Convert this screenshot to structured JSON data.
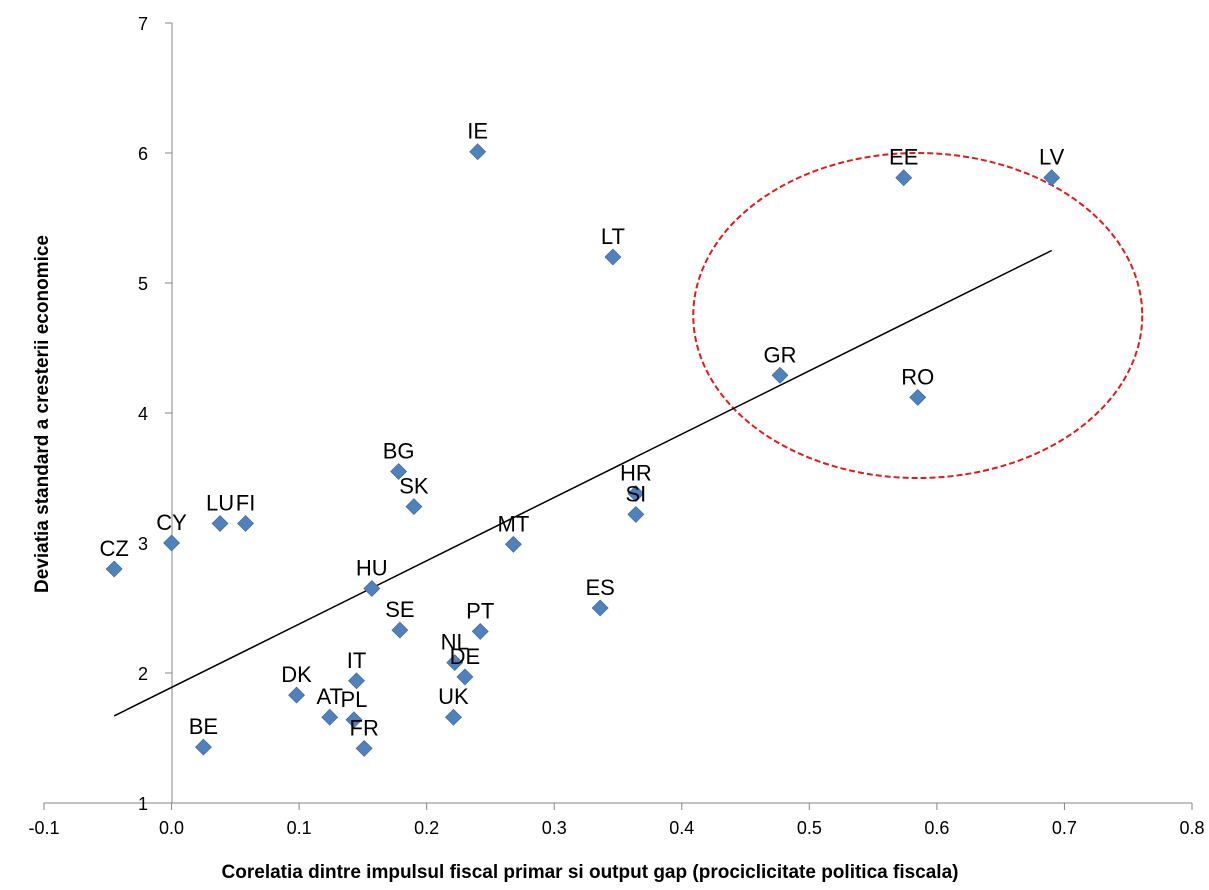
{
  "chart_data": {
    "type": "scatter",
    "title": "",
    "xlabel": "Corelatia dintre impulsul fiscal primar si output gap (prociclicitate politica fiscala)",
    "ylabel": "Deviatia standard a cresterii economice",
    "xlim": [
      -0.1,
      0.8
    ],
    "ylim": [
      1,
      7
    ],
    "x_ticks": [
      "-0.1",
      "0.0",
      "0.1",
      "0.2",
      "0.3",
      "0.4",
      "0.5",
      "0.6",
      "0.7",
      "0.8"
    ],
    "y_ticks": [
      "1",
      "2",
      "3",
      "4",
      "5",
      "6",
      "7"
    ],
    "grid": false,
    "legend": "none",
    "marker_color": "#4F81BD",
    "trendline": {
      "x": [
        -0.045,
        0.69
      ],
      "y": [
        1.67,
        5.25
      ],
      "color": "#000000"
    },
    "highlight_ellipse": {
      "cx": 0.585,
      "cy": 4.75,
      "rx": 0.176,
      "ry": 1.25,
      "color": "#E31A1C"
    },
    "points": [
      {
        "label": "CZ",
        "x": -0.045,
        "y": 2.8
      },
      {
        "label": "CY",
        "x": 0.0,
        "y": 3.0
      },
      {
        "label": "LU",
        "x": 0.038,
        "y": 3.15
      },
      {
        "label": "FI",
        "x": 0.058,
        "y": 3.15
      },
      {
        "label": "BE",
        "x": 0.025,
        "y": 1.43
      },
      {
        "label": "DK",
        "x": 0.098,
        "y": 1.83
      },
      {
        "label": "AT",
        "x": 0.124,
        "y": 1.66
      },
      {
        "label": "IT",
        "x": 0.145,
        "y": 1.94
      },
      {
        "label": "PL",
        "x": 0.143,
        "y": 1.64
      },
      {
        "label": "FR",
        "x": 0.151,
        "y": 1.42
      },
      {
        "label": "HU",
        "x": 0.157,
        "y": 2.65
      },
      {
        "label": "BG",
        "x": 0.178,
        "y": 3.55
      },
      {
        "label": "SE",
        "x": 0.179,
        "y": 2.33
      },
      {
        "label": "SK",
        "x": 0.19,
        "y": 3.28
      },
      {
        "label": "NL",
        "x": 0.222,
        "y": 2.08
      },
      {
        "label": "DE",
        "x": 0.23,
        "y": 1.97
      },
      {
        "label": "UK",
        "x": 0.221,
        "y": 1.66
      },
      {
        "label": "IE",
        "x": 0.24,
        "y": 6.01
      },
      {
        "label": "PT",
        "x": 0.242,
        "y": 2.32
      },
      {
        "label": "MT",
        "x": 0.268,
        "y": 2.99
      },
      {
        "label": "ES",
        "x": 0.336,
        "y": 2.5
      },
      {
        "label": "LT",
        "x": 0.346,
        "y": 5.2
      },
      {
        "label": "HR",
        "x": 0.364,
        "y": 3.38
      },
      {
        "label": "SI",
        "x": 0.364,
        "y": 3.22
      },
      {
        "label": "GR",
        "x": 0.477,
        "y": 4.29
      },
      {
        "label": "EE",
        "x": 0.574,
        "y": 5.81
      },
      {
        "label": "RO",
        "x": 0.585,
        "y": 4.12
      },
      {
        "label": "LV",
        "x": 0.69,
        "y": 5.81
      }
    ]
  }
}
